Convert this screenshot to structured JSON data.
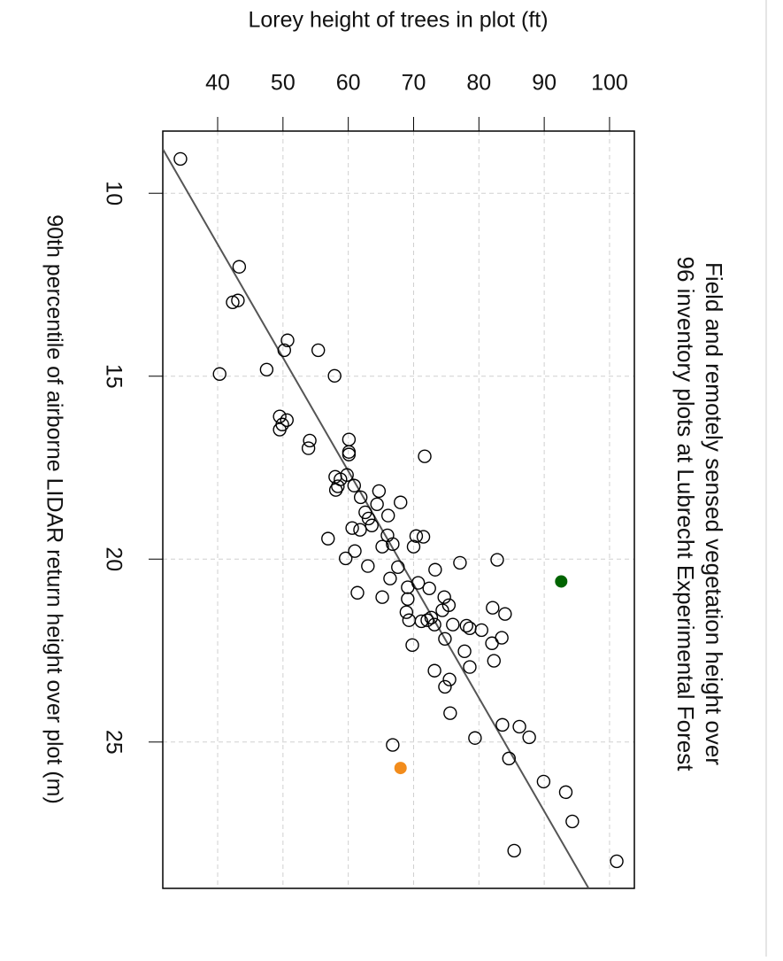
{
  "chart_data": {
    "type": "scatter",
    "title": [
      "Field and remotely sensed vegetation height over",
      "96 inventory plots at Lubrecht Experimental Forest"
    ],
    "x_label": "90th percentile of airborne LIDAR return height over plot (m)",
    "y_label": "Lorey height of trees in plot (ft)",
    "xlim": [
      8.3,
      29.0
    ],
    "xticks": [
      10,
      15,
      20,
      25
    ],
    "ylim": [
      31.6,
      103.8
    ],
    "yticks": [
      40,
      50,
      60,
      70,
      80,
      90,
      100
    ],
    "grid": true,
    "rotated": true,
    "series": [
      {
        "color": "#000000",
        "filled": false,
        "x": [
          9.06,
          12.01,
          12.98,
          12.93,
          14.02,
          14.29,
          14.29,
          14.94,
          14.82,
          14.99,
          16.1,
          16.2,
          16.32,
          16.46,
          16.76,
          16.97,
          16.73,
          17.07,
          17.14,
          17.19,
          17.7,
          17.75,
          17.82,
          17.99,
          18.11,
          18.01,
          18.14,
          18.31,
          18.5,
          18.45,
          18.72,
          18.81,
          18.89,
          19.08,
          19.15,
          19.2,
          19.35,
          19.37,
          19.39,
          19.44,
          19.59,
          19.66,
          19.66,
          19.78,
          19.98,
          20.02,
          20.1,
          20.22,
          20.29,
          20.19,
          20.53,
          20.65,
          20.8,
          20.77,
          20.92,
          21.04,
          21.09,
          21.04,
          21.26,
          21.4,
          21.33,
          21.5,
          21.45,
          21.6,
          21.67,
          21.67,
          21.7,
          21.79,
          21.82,
          21.79,
          21.89,
          21.94,
          22.18,
          22.15,
          22.3,
          22.35,
          22.52,
          22.78,
          22.95,
          23.05,
          23.29,
          23.49,
          24.21,
          24.53,
          24.58,
          24.87,
          24.89,
          25.08,
          25.45,
          26.08,
          26.37,
          27.17,
          27.97,
          28.26
        ],
        "values": [
          34.3,
          43.3,
          42.3,
          43.1,
          50.7,
          50.2,
          55.4,
          40.3,
          47.5,
          57.9,
          49.5,
          50.6,
          49.9,
          49.5,
          54.1,
          53.9,
          60.1,
          60.1,
          60.1,
          71.7,
          59.8,
          58.0,
          58.8,
          60.9,
          58.1,
          58.4,
          64.7,
          61.9,
          64.4,
          68.0,
          62.6,
          66.1,
          63.1,
          63.6,
          60.6,
          61.8,
          66.0,
          70.4,
          71.5,
          56.9,
          66.8,
          65.2,
          70.0,
          61.0,
          59.6,
          82.8,
          77.1,
          67.6,
          73.3,
          63.0,
          66.4,
          70.7,
          72.4,
          69.1,
          61.4,
          65.2,
          69.1,
          74.7,
          75.4,
          74.4,
          82.1,
          84.0,
          68.9,
          72.7,
          72.1,
          69.3,
          71.2,
          76.0,
          78.1,
          73.2,
          78.6,
          80.4,
          74.8,
          83.5,
          82.0,
          69.8,
          77.8,
          82.3,
          78.6,
          73.2,
          75.5,
          74.8,
          75.6,
          83.6,
          86.2,
          87.7,
          79.4,
          66.8,
          84.6,
          89.9,
          93.3,
          94.3,
          85.4,
          101.1
        ]
      },
      {
        "color": "#006400",
        "filled": true,
        "x": [
          20.61
        ],
        "values": [
          92.6
        ]
      },
      {
        "color": "#f28c1c",
        "filled": true,
        "x": [
          25.71
        ],
        "values": [
          68.0
        ]
      }
    ],
    "regression": {
      "color": "#555555",
      "x": [
        8.79,
        29.0
      ],
      "values": [
        31.6,
        96.8
      ]
    }
  }
}
